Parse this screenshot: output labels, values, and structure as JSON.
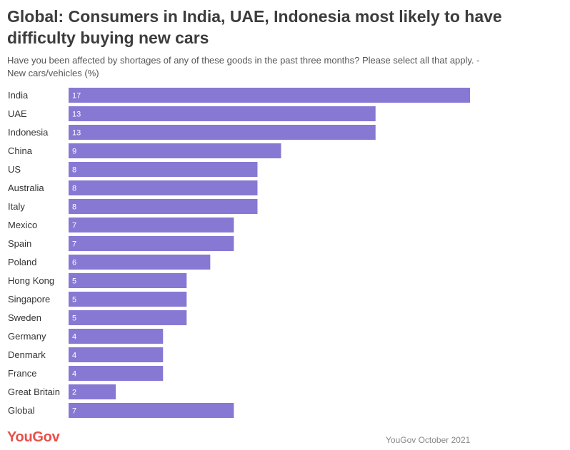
{
  "title": "Global: Consumers in India, UAE, Indonesia most likely to have difficulty buying new cars",
  "subtitle": "Have you been affected by shortages of any of these goods in the past three months? Please select all that apply. - New cars/vehicles (%)",
  "logo_text": "YouGov",
  "source": "YouGov October 2021",
  "colors": {
    "bar": "#8778d4",
    "logo": "#e9504a"
  },
  "chart_data": {
    "type": "bar",
    "orientation": "horizontal",
    "title": "Global: Consumers in India, UAE, Indonesia most likely to have difficulty buying new cars",
    "xlim": [
      0,
      17
    ],
    "grid": false,
    "categories": [
      "India",
      "UAE",
      "Indonesia",
      "China",
      "US",
      "Australia",
      "Italy",
      "Mexico",
      "Spain",
      "Poland",
      "Hong Kong",
      "Singapore",
      "Sweden",
      "Germany",
      "Denmark",
      "France",
      "Great Britain",
      "Global"
    ],
    "values": [
      17,
      13,
      13,
      9,
      8,
      8,
      8,
      7,
      7,
      6,
      5,
      5,
      5,
      4,
      4,
      4,
      2,
      7
    ]
  }
}
